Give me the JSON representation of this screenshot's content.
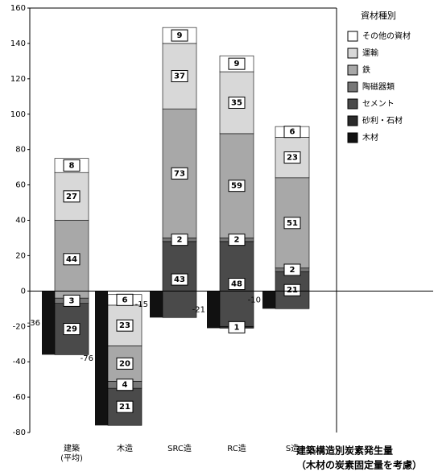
{
  "chart_data": {
    "type": "bar",
    "stacked": true,
    "title": "建築構造別炭素発生量",
    "subtitle": "（木材の炭素固定量を考慮）",
    "legend_title": "資材種別",
    "categories": [
      "建築\n(平均)",
      "木造",
      "SRC造",
      "RC造",
      "S造"
    ],
    "series": [
      {
        "name": "木材",
        "color": "#111111",
        "values": [
          -36,
          -76,
          -15,
          -21,
          -10
        ]
      },
      {
        "name": "砂利・石材",
        "color": "#2a2a2a",
        "values": [
          null,
          null,
          null,
          1,
          null
        ]
      },
      {
        "name": "セメント",
        "color": "#4a4a4a",
        "values": [
          29,
          21,
          43,
          48,
          21
        ]
      },
      {
        "name": "陶磁器類",
        "color": "#777777",
        "values": [
          3,
          4,
          2,
          2,
          2
        ]
      },
      {
        "name": "鉄",
        "color": "#a8a8a8",
        "values": [
          44,
          20,
          73,
          59,
          51
        ]
      },
      {
        "name": "運輸",
        "color": "#d8d8d8",
        "values": [
          27,
          23,
          37,
          35,
          23
        ]
      },
      {
        "name": "その他の資材",
        "color": "#ffffff",
        "values": [
          8,
          6,
          9,
          9,
          6
        ]
      }
    ],
    "ylim": [
      -80,
      160
    ],
    "yticks": [
      -80,
      -60,
      -40,
      -20,
      0,
      20,
      40,
      60,
      80,
      100,
      120,
      140,
      160
    ],
    "legend": "upper right"
  }
}
